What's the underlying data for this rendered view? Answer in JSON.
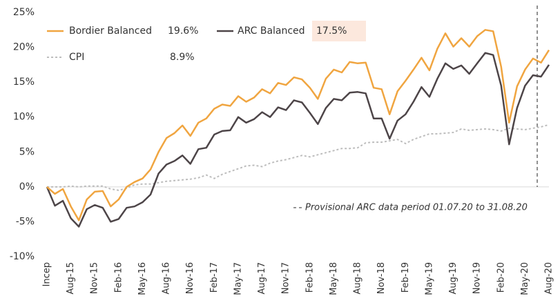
{
  "chart_data": {
    "type": "line",
    "categories": [
      "Incep",
      null,
      null,
      "Aug-15",
      null,
      null,
      "Nov-15",
      null,
      null,
      "Feb-16",
      null,
      null,
      "May-16",
      null,
      null,
      "Aug-16",
      null,
      null,
      "Nov-16",
      null,
      null,
      "Feb-17",
      null,
      null,
      "May-17",
      null,
      null,
      "Aug-17",
      null,
      null,
      "Nov-17",
      null,
      null,
      "Feb-18",
      null,
      null,
      "May-18",
      null,
      null,
      "Aug-18",
      null,
      null,
      "Nov-18",
      null,
      null,
      "Feb-19",
      null,
      null,
      "May-19",
      null,
      null,
      "Aug-19",
      null,
      null,
      "Nov-19",
      null,
      null,
      "Feb-20",
      null,
      null,
      "May-20",
      null,
      null,
      "Aug-20"
    ],
    "series": [
      {
        "name": "Bordier Balanced",
        "color": "#f0a540",
        "legend_value": "19.6%",
        "values": [
          0,
          -1.0,
          -0.3,
          -2.8,
          -4.8,
          -1.8,
          -0.7,
          -0.6,
          -2.8,
          -1.8,
          0,
          0.7,
          1.2,
          2.5,
          5,
          7,
          7.7,
          8.8,
          7.3,
          9.2,
          9.8,
          11.2,
          11.8,
          11.6,
          13,
          12.2,
          12.8,
          14,
          13.4,
          14.9,
          14.6,
          15.7,
          15.4,
          14.2,
          12.6,
          15.5,
          16.8,
          16.4,
          17.9,
          17.7,
          17.8,
          14.2,
          14,
          10.4,
          13.7,
          15.2,
          16.8,
          18.5,
          16.7,
          19.8,
          22,
          20.1,
          21.3,
          20.1,
          21.6,
          22.5,
          22.3,
          17.2,
          9.2,
          14.4,
          16.8,
          18.4,
          17.8,
          19.6
        ]
      },
      {
        "name": "ARC Balanced",
        "color": "#4d4548",
        "legend_value": "17.5%",
        "legend_highlight": "#fce8dd",
        "values": [
          0,
          -2.7,
          -2.0,
          -4.5,
          -5.7,
          -3.2,
          -2.6,
          -3.0,
          -5.0,
          -4.6,
          -3.0,
          -2.8,
          -2.2,
          -1.1,
          1.9,
          3.2,
          3.7,
          4.5,
          3.3,
          5.4,
          5.6,
          7.5,
          8.0,
          8.1,
          10.0,
          9.2,
          9.7,
          10.7,
          10.0,
          11.4,
          11.0,
          12.4,
          12.1,
          10.6,
          9.0,
          11.3,
          12.6,
          12.4,
          13.5,
          13.6,
          13.4,
          9.8,
          9.8,
          6.9,
          9.5,
          10.4,
          12.2,
          14.3,
          12.9,
          15.5,
          17.7,
          16.9,
          17.4,
          16.2,
          17.7,
          19.2,
          18.9,
          14.5,
          6.1,
          11.3,
          14.5,
          16.0,
          15.8,
          17.5
        ]
      },
      {
        "name": "CPI",
        "color": "#bdbdbd",
        "dashed": true,
        "legend_value": "8.9%",
        "values": [
          0,
          0,
          0,
          0.1,
          0,
          0.1,
          0.1,
          0.1,
          -0.3,
          -0.5,
          -0.2,
          0.3,
          0.4,
          0.4,
          0.6,
          0.8,
          0.9,
          1.0,
          1.1,
          1.3,
          1.7,
          1.2,
          1.8,
          2.2,
          2.6,
          3.0,
          3.1,
          2.9,
          3.4,
          3.7,
          3.9,
          4.2,
          4.5,
          4.3,
          4.6,
          4.9,
          5.2,
          5.5,
          5.5,
          5.6,
          6.3,
          6.4,
          6.4,
          6.6,
          6.8,
          6.2,
          6.8,
          7.2,
          7.6,
          7.6,
          7.7,
          7.8,
          8.3,
          8.1,
          8.2,
          8.3,
          8.2,
          8.0,
          8.4,
          8.3,
          8.2,
          8.4,
          8.6,
          8.9
        ]
      }
    ],
    "ylim": [
      -10,
      25
    ],
    "yticks": [
      {
        "value": -10,
        "label": "-10%"
      },
      {
        "value": -5,
        "label": "-5%"
      },
      {
        "value": 0,
        "label": "0%"
      },
      {
        "value": 5,
        "label": "5%"
      },
      {
        "value": 10,
        "label": "10%"
      },
      {
        "value": 15,
        "label": "15%"
      },
      {
        "value": 20,
        "label": "20%"
      },
      {
        "value": 25,
        "label": "25%"
      }
    ],
    "annotation": "Provisional ARC data period 01.07.20 to 31.08.20"
  }
}
